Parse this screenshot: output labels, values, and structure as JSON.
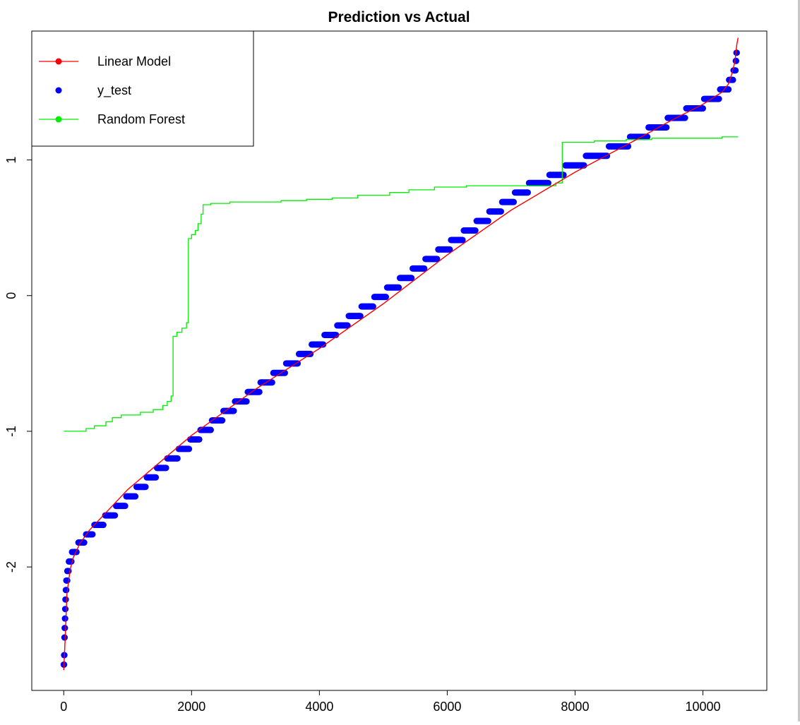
{
  "chart_data": {
    "type": "line",
    "title": "Prediction vs Actual",
    "xlabel": "",
    "ylabel": "",
    "xlim": [
      -500,
      11000
    ],
    "ylim": [
      -2.91,
      1.95
    ],
    "x_ticks": [
      0,
      2000,
      4000,
      6000,
      8000,
      10000
    ],
    "y_ticks": [
      -2,
      -1,
      0,
      1
    ],
    "grid": false,
    "legend": {
      "position": "top-left",
      "entries": [
        {
          "label": "Linear Model",
          "color": "#ff0000",
          "line": true,
          "point": true
        },
        {
          "label": "y_test",
          "color": "#0000ff",
          "line": false,
          "point": true
        },
        {
          "label": "Random Forest",
          "color": "#00ee00",
          "line": true,
          "point": true
        }
      ]
    },
    "series": [
      {
        "name": "Linear Model",
        "kind": "line",
        "color": "#ff0000",
        "points": [
          [
            0,
            -2.76
          ],
          [
            20,
            -2.55
          ],
          [
            50,
            -2.2
          ],
          [
            100,
            -2.02
          ],
          [
            150,
            -1.93
          ],
          [
            250,
            -1.83
          ],
          [
            400,
            -1.73
          ],
          [
            700,
            -1.58
          ],
          [
            1000,
            -1.43
          ],
          [
            2000,
            -1.03
          ],
          [
            3000,
            -0.69
          ],
          [
            4000,
            -0.39
          ],
          [
            5000,
            -0.06
          ],
          [
            6000,
            0.3
          ],
          [
            7000,
            0.63
          ],
          [
            8000,
            0.91
          ],
          [
            9000,
            1.16
          ],
          [
            9500,
            1.29
          ],
          [
            10000,
            1.41
          ],
          [
            10300,
            1.5
          ],
          [
            10400,
            1.56
          ],
          [
            10450,
            1.63
          ],
          [
            10500,
            1.72
          ],
          [
            10530,
            1.85
          ],
          [
            10550,
            1.9
          ]
        ]
      },
      {
        "name": "y_test",
        "kind": "step-points",
        "color": "#0000ff",
        "levels": [
          {
            "y": -2.72,
            "x0": 0,
            "x1": 5
          },
          {
            "y": -2.65,
            "x0": 6,
            "x1": 10
          },
          {
            "y": -2.52,
            "x0": 11,
            "x1": 14
          },
          {
            "y": -2.45,
            "x0": 15,
            "x1": 18
          },
          {
            "y": -2.38,
            "x0": 19,
            "x1": 22
          },
          {
            "y": -2.31,
            "x0": 23,
            "x1": 26
          },
          {
            "y": -2.24,
            "x0": 27,
            "x1": 32
          },
          {
            "y": -2.17,
            "x0": 33,
            "x1": 40
          },
          {
            "y": -2.1,
            "x0": 41,
            "x1": 55
          },
          {
            "y": -2.03,
            "x0": 56,
            "x1": 75
          },
          {
            "y": -1.96,
            "x0": 80,
            "x1": 120
          },
          {
            "y": -1.89,
            "x0": 130,
            "x1": 200
          },
          {
            "y": -1.82,
            "x0": 230,
            "x1": 320
          },
          {
            "y": -1.76,
            "x0": 350,
            "x1": 450
          },
          {
            "y": -1.69,
            "x0": 480,
            "x1": 620
          },
          {
            "y": -1.62,
            "x0": 650,
            "x1": 800
          },
          {
            "y": -1.55,
            "x0": 820,
            "x1": 960
          },
          {
            "y": -1.48,
            "x0": 980,
            "x1": 1120
          },
          {
            "y": -1.41,
            "x0": 1140,
            "x1": 1280
          },
          {
            "y": -1.34,
            "x0": 1300,
            "x1": 1440
          },
          {
            "y": -1.27,
            "x0": 1460,
            "x1": 1600
          },
          {
            "y": -1.2,
            "x0": 1620,
            "x1": 1780
          },
          {
            "y": -1.13,
            "x0": 1800,
            "x1": 1960
          },
          {
            "y": -1.06,
            "x0": 1980,
            "x1": 2120
          },
          {
            "y": -0.99,
            "x0": 2140,
            "x1": 2300
          },
          {
            "y": -0.92,
            "x0": 2320,
            "x1": 2480
          },
          {
            "y": -0.85,
            "x0": 2500,
            "x1": 2660
          },
          {
            "y": -0.78,
            "x0": 2680,
            "x1": 2860
          },
          {
            "y": -0.71,
            "x0": 2880,
            "x1": 3060
          },
          {
            "y": -0.64,
            "x0": 3080,
            "x1": 3260
          },
          {
            "y": -0.57,
            "x0": 3280,
            "x1": 3460
          },
          {
            "y": -0.5,
            "x0": 3480,
            "x1": 3660
          },
          {
            "y": -0.43,
            "x0": 3680,
            "x1": 3860
          },
          {
            "y": -0.36,
            "x0": 3880,
            "x1": 4060
          },
          {
            "y": -0.29,
            "x0": 4080,
            "x1": 4260
          },
          {
            "y": -0.22,
            "x0": 4280,
            "x1": 4440
          },
          {
            "y": -0.15,
            "x0": 4460,
            "x1": 4640
          },
          {
            "y": -0.08,
            "x0": 4660,
            "x1": 4840
          },
          {
            "y": -0.01,
            "x0": 4860,
            "x1": 5040
          },
          {
            "y": 0.06,
            "x0": 5060,
            "x1": 5240
          },
          {
            "y": 0.13,
            "x0": 5260,
            "x1": 5440
          },
          {
            "y": 0.2,
            "x0": 5460,
            "x1": 5640
          },
          {
            "y": 0.27,
            "x0": 5660,
            "x1": 5840
          },
          {
            "y": 0.34,
            "x0": 5860,
            "x1": 6040
          },
          {
            "y": 0.41,
            "x0": 6060,
            "x1": 6240
          },
          {
            "y": 0.48,
            "x0": 6260,
            "x1": 6440
          },
          {
            "y": 0.55,
            "x0": 6460,
            "x1": 6640
          },
          {
            "y": 0.62,
            "x0": 6660,
            "x1": 6840
          },
          {
            "y": 0.69,
            "x0": 6860,
            "x1": 7040
          },
          {
            "y": 0.76,
            "x0": 7060,
            "x1": 7260
          },
          {
            "y": 0.83,
            "x0": 7280,
            "x1": 7580
          },
          {
            "y": 0.89,
            "x0": 7600,
            "x1": 7820
          },
          {
            "y": 0.96,
            "x0": 7850,
            "x1": 8140
          },
          {
            "y": 1.03,
            "x0": 8170,
            "x1": 8500
          },
          {
            "y": 1.1,
            "x0": 8530,
            "x1": 8830
          },
          {
            "y": 1.17,
            "x0": 8860,
            "x1": 9130
          },
          {
            "y": 1.24,
            "x0": 9150,
            "x1": 9430
          },
          {
            "y": 1.31,
            "x0": 9450,
            "x1": 9720
          },
          {
            "y": 1.38,
            "x0": 9740,
            "x1": 10000
          },
          {
            "y": 1.45,
            "x0": 10020,
            "x1": 10250
          },
          {
            "y": 1.52,
            "x0": 10270,
            "x1": 10400
          },
          {
            "y": 1.59,
            "x0": 10410,
            "x1": 10470
          },
          {
            "y": 1.66,
            "x0": 10480,
            "x1": 10510
          },
          {
            "y": 1.73,
            "x0": 10515,
            "x1": 10520
          },
          {
            "y": 1.79,
            "x0": 10525,
            "x1": 10530
          }
        ]
      },
      {
        "name": "Random Forest",
        "kind": "step-line",
        "color": "#00ee00",
        "points": [
          [
            0,
            -1.0
          ],
          [
            350,
            -1.0
          ],
          [
            350,
            -0.98
          ],
          [
            480,
            -0.98
          ],
          [
            480,
            -0.96
          ],
          [
            660,
            -0.96
          ],
          [
            660,
            -0.93
          ],
          [
            760,
            -0.93
          ],
          [
            760,
            -0.9
          ],
          [
            900,
            -0.9
          ],
          [
            900,
            -0.88
          ],
          [
            1200,
            -0.88
          ],
          [
            1200,
            -0.86
          ],
          [
            1400,
            -0.86
          ],
          [
            1400,
            -0.84
          ],
          [
            1550,
            -0.84
          ],
          [
            1550,
            -0.81
          ],
          [
            1620,
            -0.81
          ],
          [
            1620,
            -0.78
          ],
          [
            1680,
            -0.78
          ],
          [
            1680,
            -0.74
          ],
          [
            1710,
            -0.74
          ],
          [
            1710,
            -0.3
          ],
          [
            1770,
            -0.3
          ],
          [
            1770,
            -0.27
          ],
          [
            1850,
            -0.27
          ],
          [
            1850,
            -0.24
          ],
          [
            1920,
            -0.24
          ],
          [
            1920,
            -0.2
          ],
          [
            1950,
            -0.2
          ],
          [
            1950,
            0.42
          ],
          [
            2000,
            0.42
          ],
          [
            2000,
            0.45
          ],
          [
            2060,
            0.45
          ],
          [
            2060,
            0.48
          ],
          [
            2100,
            0.48
          ],
          [
            2100,
            0.53
          ],
          [
            2150,
            0.53
          ],
          [
            2150,
            0.6
          ],
          [
            2180,
            0.6
          ],
          [
            2180,
            0.67
          ],
          [
            2300,
            0.67
          ],
          [
            2300,
            0.68
          ],
          [
            2600,
            0.68
          ],
          [
            2600,
            0.69
          ],
          [
            3400,
            0.69
          ],
          [
            3400,
            0.7
          ],
          [
            3800,
            0.7
          ],
          [
            3800,
            0.71
          ],
          [
            4200,
            0.71
          ],
          [
            4200,
            0.72
          ],
          [
            4600,
            0.72
          ],
          [
            4600,
            0.74
          ],
          [
            5100,
            0.74
          ],
          [
            5100,
            0.76
          ],
          [
            5400,
            0.76
          ],
          [
            5400,
            0.78
          ],
          [
            5800,
            0.78
          ],
          [
            5800,
            0.8
          ],
          [
            6300,
            0.8
          ],
          [
            6300,
            0.81
          ],
          [
            7700,
            0.81
          ],
          [
            7700,
            0.83
          ],
          [
            7800,
            0.83
          ],
          [
            7800,
            1.13
          ],
          [
            8300,
            1.13
          ],
          [
            8300,
            1.14
          ],
          [
            8800,
            1.14
          ],
          [
            8800,
            1.15
          ],
          [
            9200,
            1.15
          ],
          [
            9200,
            1.16
          ],
          [
            10300,
            1.16
          ],
          [
            10300,
            1.17
          ],
          [
            10550,
            1.17
          ]
        ]
      }
    ]
  }
}
